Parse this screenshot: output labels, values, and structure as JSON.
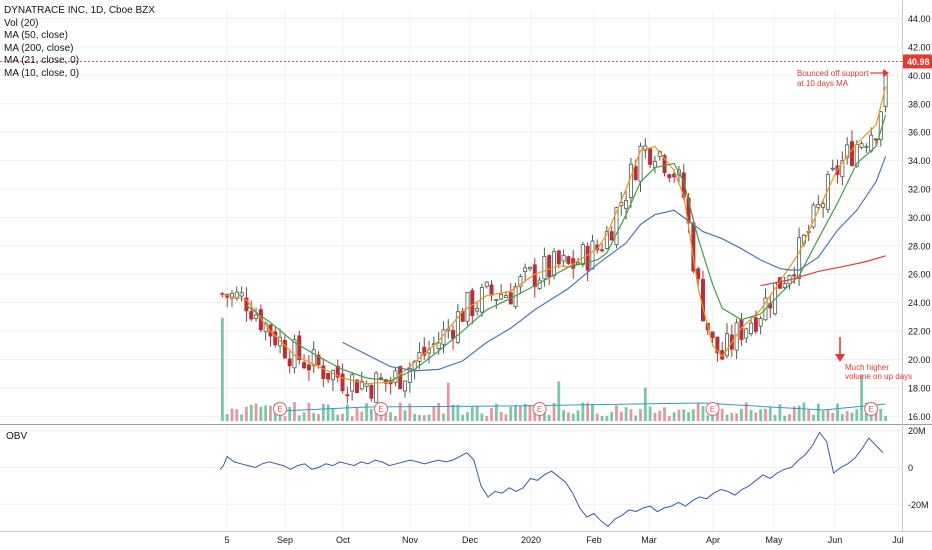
{
  "legend": {
    "title": "DYNATRACE INC, 1D, Cboe BZX",
    "vol": "Vol (20)",
    "ma50": "MA (50, close)",
    "ma200": "MA (200, close)",
    "ma21": "MA (21, close, 0)",
    "ma10": "MA (10, close, 0)"
  },
  "price_label": "40.98",
  "obv_title": "OBV",
  "colors": {
    "up": "#26a69a",
    "down": "#b5303a",
    "candle": "#3a1e24",
    "ma10": "#f7931a",
    "ma21": "#43a047",
    "ma50": "#4a78b5",
    "ma200": "#e53935",
    "obv": "#3b5aa8",
    "annotation": "#e53935",
    "grid": "#eef0f3"
  },
  "annotations": [
    {
      "text": "Bounced off support",
      "id": "support-1"
    },
    {
      "text": "at 10 days MA",
      "id": "support-2"
    },
    {
      "text": "Much higher",
      "id": "volume-1"
    },
    {
      "text": "volume on up days",
      "id": "volume-2"
    }
  ],
  "earnings_marker": "E",
  "chart_data": {
    "type": "line",
    "title": "DYNATRACE INC, 1D, Cboe BZX",
    "price_axis": {
      "ticks": [
        "16.00",
        "18.00",
        "20.00",
        "22.00",
        "24.00",
        "26.00",
        "28.00",
        "30.00",
        "32.00",
        "34.00",
        "36.00",
        "38.00",
        "40.00",
        "42.00",
        "44.00"
      ],
      "ylim": [
        15.6,
        44.6
      ]
    },
    "obv_axis": {
      "ticks": [
        "20M",
        "0",
        "-20M"
      ],
      "ylim": [
        -34,
        22
      ]
    },
    "x_labels": [
      "5",
      "Sep",
      "Oct",
      "Nov",
      "Dec",
      "2020",
      "Feb",
      "Mar",
      "Apr",
      "May",
      "Jun",
      "Jul"
    ],
    "last_price": 40.98,
    "series": [
      {
        "name": "MA (10, close, 0)",
        "points": [
          [
            0,
            24.6
          ],
          [
            5,
            24.2
          ],
          [
            10,
            22.0
          ],
          [
            15,
            20.3
          ],
          [
            20,
            19.5
          ],
          [
            25,
            18.7
          ],
          [
            30,
            18.3
          ],
          [
            35,
            18.4
          ],
          [
            40,
            19.8
          ],
          [
            45,
            21.3
          ],
          [
            50,
            23.4
          ],
          [
            55,
            24.5
          ],
          [
            60,
            24.8
          ],
          [
            65,
            26.0
          ],
          [
            70,
            26.6
          ],
          [
            72,
            26.5
          ],
          [
            78,
            27.8
          ],
          [
            80,
            28.8
          ],
          [
            84,
            32.0
          ],
          [
            87,
            34.7
          ],
          [
            90,
            35.0
          ],
          [
            94,
            33.3
          ],
          [
            96,
            31.5
          ],
          [
            99,
            25.0
          ],
          [
            102,
            21.0
          ],
          [
            104,
            20.2
          ],
          [
            108,
            22.2
          ],
          [
            112,
            23.5
          ],
          [
            116,
            25.5
          ],
          [
            120,
            27.5
          ],
          [
            124,
            30.5
          ],
          [
            128,
            33.4
          ],
          [
            132,
            35.2
          ],
          [
            136,
            36.5
          ],
          [
            138,
            39.2
          ]
        ]
      },
      {
        "name": "MA (21, close, 0)",
        "points": [
          [
            5,
            23.8
          ],
          [
            10,
            22.6
          ],
          [
            15,
            21.2
          ],
          [
            20,
            20.2
          ],
          [
            25,
            19.3
          ],
          [
            30,
            18.7
          ],
          [
            35,
            18.5
          ],
          [
            40,
            19.3
          ],
          [
            45,
            20.6
          ],
          [
            50,
            22.0
          ],
          [
            55,
            23.5
          ],
          [
            60,
            24.3
          ],
          [
            65,
            25.2
          ],
          [
            72,
            26.5
          ],
          [
            78,
            27.0
          ],
          [
            80,
            27.5
          ],
          [
            84,
            30.2
          ],
          [
            87,
            32.5
          ],
          [
            90,
            33.5
          ],
          [
            94,
            33.8
          ],
          [
            96,
            32.5
          ],
          [
            99,
            28.5
          ],
          [
            102,
            25.3
          ],
          [
            104,
            23.6
          ],
          [
            108,
            22.8
          ],
          [
            112,
            23.2
          ],
          [
            116,
            24.6
          ],
          [
            120,
            25.9
          ],
          [
            124,
            28.5
          ],
          [
            128,
            31.0
          ],
          [
            132,
            33.8
          ],
          [
            136,
            35.0
          ],
          [
            138,
            37.2
          ]
        ]
      },
      {
        "name": "MA (50, close)",
        "points": [
          [
            25,
            21.2
          ],
          [
            35,
            19.5
          ],
          [
            40,
            19.2
          ],
          [
            45,
            19.3
          ],
          [
            50,
            19.9
          ],
          [
            55,
            21.2
          ],
          [
            60,
            22.2
          ],
          [
            65,
            23.5
          ],
          [
            72,
            25.0
          ],
          [
            78,
            26.7
          ],
          [
            80,
            27.2
          ],
          [
            84,
            28.2
          ],
          [
            87,
            29.5
          ],
          [
            90,
            30.2
          ],
          [
            94,
            30.5
          ],
          [
            96,
            30.0
          ],
          [
            100,
            29.0
          ],
          [
            104,
            28.5
          ],
          [
            108,
            27.8
          ],
          [
            112,
            27.0
          ],
          [
            116,
            26.4
          ],
          [
            118,
            26.3
          ],
          [
            120,
            26.3
          ],
          [
            124,
            27.2
          ],
          [
            128,
            29.1
          ],
          [
            132,
            30.5
          ],
          [
            136,
            32.5
          ],
          [
            138,
            34.3
          ]
        ]
      },
      {
        "name": "MA (200, close)",
        "points": [
          [
            112,
            25.2
          ],
          [
            118,
            25.6
          ],
          [
            124,
            26.2
          ],
          [
            130,
            26.6
          ],
          [
            134,
            26.9
          ],
          [
            138,
            27.3
          ]
        ]
      }
    ],
    "volume_spikes": [
      [
        0,
        8.6
      ],
      [
        47,
        3.2
      ],
      [
        70,
        3.3
      ],
      [
        88,
        2.8
      ],
      [
        133,
        3.8
      ]
    ],
    "obv": [
      [
        0,
        -1
      ],
      [
        1,
        1
      ],
      [
        2,
        6
      ],
      [
        4,
        3
      ],
      [
        6,
        2
      ],
      [
        8,
        1
      ],
      [
        10,
        0
      ],
      [
        12,
        2
      ],
      [
        14,
        3
      ],
      [
        16,
        2
      ],
      [
        18,
        1
      ],
      [
        20,
        -1
      ],
      [
        22,
        1
      ],
      [
        24,
        2
      ],
      [
        26,
        -1
      ],
      [
        28,
        0
      ],
      [
        30,
        2
      ],
      [
        32,
        1
      ],
      [
        34,
        3
      ],
      [
        36,
        2
      ],
      [
        38,
        1
      ],
      [
        40,
        3
      ],
      [
        42,
        2
      ],
      [
        44,
        4
      ],
      [
        46,
        3
      ],
      [
        48,
        1
      ],
      [
        50,
        2
      ],
      [
        52,
        3
      ],
      [
        54,
        4
      ],
      [
        56,
        3
      ],
      [
        58,
        2
      ],
      [
        60,
        3
      ],
      [
        62,
        4
      ],
      [
        64,
        3
      ],
      [
        66,
        4
      ],
      [
        68,
        6
      ],
      [
        70,
        8
      ],
      [
        71,
        6
      ],
      [
        72,
        4
      ],
      [
        74,
        -10
      ],
      [
        76,
        -16
      ],
      [
        78,
        -13
      ],
      [
        80,
        -14
      ],
      [
        82,
        -11
      ],
      [
        84,
        -13
      ],
      [
        86,
        -11
      ],
      [
        88,
        -6
      ],
      [
        90,
        -7
      ],
      [
        92,
        -4
      ],
      [
        94,
        -2
      ],
      [
        96,
        -5
      ],
      [
        98,
        -8
      ],
      [
        100,
        -14
      ],
      [
        102,
        -22
      ],
      [
        104,
        -27
      ],
      [
        106,
        -25
      ],
      [
        108,
        -29
      ],
      [
        110,
        -32
      ],
      [
        112,
        -28
      ],
      [
        114,
        -26
      ],
      [
        116,
        -23
      ],
      [
        118,
        -24
      ],
      [
        120,
        -22
      ],
      [
        122,
        -21
      ],
      [
        124,
        -24
      ],
      [
        126,
        -22
      ],
      [
        128,
        -21
      ],
      [
        130,
        -19
      ],
      [
        132,
        -21
      ],
      [
        134,
        -18
      ],
      [
        136,
        -16
      ],
      [
        138,
        -17
      ],
      [
        140,
        -14
      ],
      [
        142,
        -12
      ],
      [
        144,
        -13
      ],
      [
        146,
        -15
      ],
      [
        148,
        -12
      ],
      [
        150,
        -10
      ],
      [
        152,
        -7
      ],
      [
        154,
        -4
      ],
      [
        156,
        -6
      ],
      [
        158,
        -3
      ],
      [
        160,
        -1
      ],
      [
        162,
        0
      ],
      [
        164,
        4
      ],
      [
        166,
        7
      ],
      [
        168,
        12
      ],
      [
        170,
        19
      ],
      [
        172,
        14
      ],
      [
        174,
        -3
      ],
      [
        176,
        0
      ],
      [
        178,
        2
      ],
      [
        180,
        5
      ],
      [
        182,
        10
      ],
      [
        184,
        16
      ],
      [
        186,
        12
      ],
      [
        188,
        8
      ]
    ]
  }
}
